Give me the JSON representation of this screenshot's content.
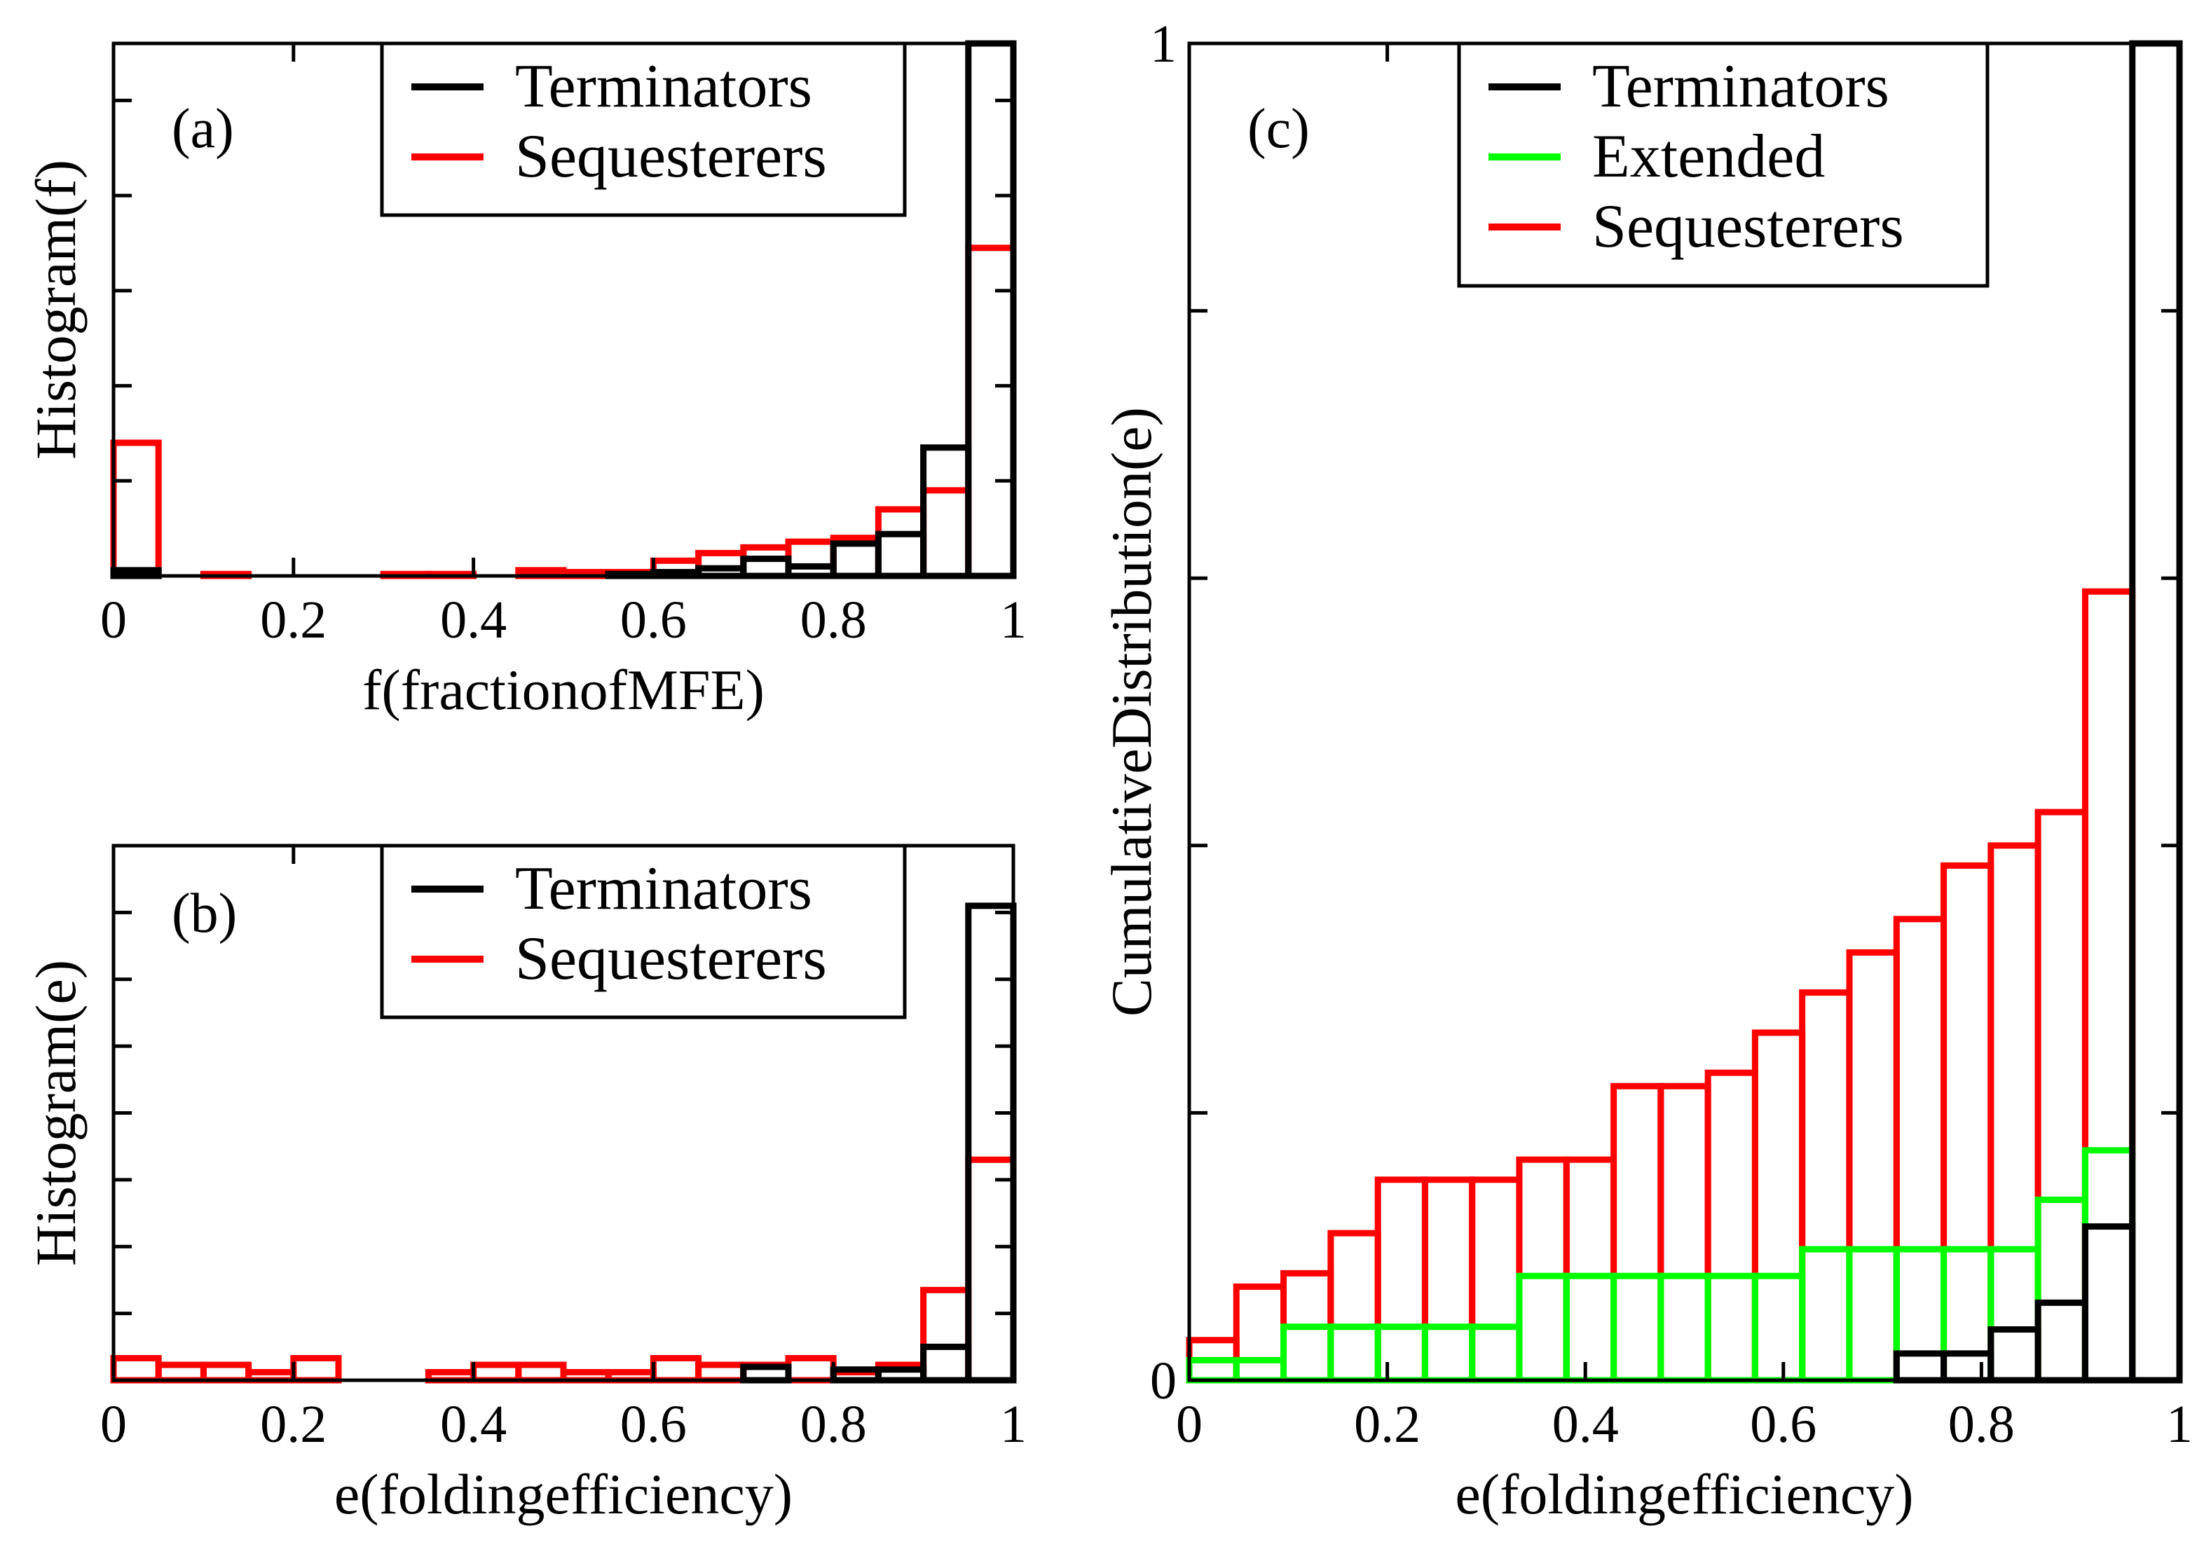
{
  "chart_data": [
    {
      "id": "a",
      "type": "histogram",
      "panel_label": "(a)",
      "xlabel": "f(fractionofMFE)",
      "ylabel": "Histogram(f)",
      "xlim": [
        0,
        1
      ],
      "ylim": [
        0,
        0.56
      ],
      "xticks": [
        0,
        0.2,
        0.4,
        0.6,
        0.8,
        1
      ],
      "xtick_labels": [
        "0",
        "0.2",
        "0.4",
        "0.6",
        "0.8",
        "1"
      ],
      "yticks": [
        0,
        0.1,
        0.2,
        0.3,
        0.4,
        0.5
      ],
      "ytick_labels": [],
      "legend": [
        "Terminators",
        "Sequesterers"
      ],
      "colors": {
        "Terminators": "#000000",
        "Sequesterers": "#ff0000"
      },
      "bin_width": 0.05,
      "bins_start": [
        0,
        0.05,
        0.1,
        0.15,
        0.2,
        0.25,
        0.3,
        0.35,
        0.4,
        0.45,
        0.5,
        0.55,
        0.6,
        0.65,
        0.7,
        0.75,
        0.8,
        0.85,
        0.9,
        0.95
      ],
      "series": [
        {
          "name": "Sequesterers",
          "values": [
            0.14,
            0.0,
            0.002,
            0.0,
            0.0,
            0.0,
            0.002,
            0.002,
            0.0,
            0.006,
            0.004,
            0.004,
            0.016,
            0.024,
            0.03,
            0.036,
            0.04,
            0.07,
            0.09,
            0.345
          ]
        },
        {
          "name": "Terminators",
          "values": [
            0.006,
            0.0,
            0.0,
            0.0,
            0.0,
            0.0,
            0.0,
            0.0,
            0.0,
            0.0,
            0.0,
            0.002,
            0.004,
            0.008,
            0.018,
            0.01,
            0.034,
            0.044,
            0.135,
            0.56
          ]
        }
      ]
    },
    {
      "id": "b",
      "type": "histogram",
      "panel_label": "(b)",
      "xlabel": "e(foldingefficiency)",
      "ylabel": "Histogram(e)",
      "xlim": [
        0,
        1
      ],
      "ylim": [
        0,
        0.8
      ],
      "xticks": [
        0,
        0.2,
        0.4,
        0.6,
        0.8,
        1
      ],
      "xtick_labels": [
        "0",
        "0.2",
        "0.4",
        "0.6",
        "0.8",
        "1"
      ],
      "yticks": [
        0,
        0.1,
        0.2,
        0.3,
        0.4,
        0.5,
        0.6,
        0.7
      ],
      "ytick_labels": [],
      "legend": [
        "Terminators",
        "Sequesterers"
      ],
      "colors": {
        "Terminators": "#000000",
        "Sequesterers": "#ff0000"
      },
      "bin_width": 0.05,
      "bins_start": [
        0,
        0.05,
        0.1,
        0.15,
        0.2,
        0.25,
        0.3,
        0.35,
        0.4,
        0.45,
        0.5,
        0.55,
        0.6,
        0.65,
        0.7,
        0.75,
        0.8,
        0.85,
        0.9,
        0.95
      ],
      "series": [
        {
          "name": "Sequesterers",
          "values": [
            0.033,
            0.023,
            0.023,
            0.012,
            0.033,
            0.0,
            0.0,
            0.012,
            0.023,
            0.023,
            0.012,
            0.012,
            0.033,
            0.023,
            0.023,
            0.033,
            0.012,
            0.023,
            0.135,
            0.33
          ]
        },
        {
          "name": "Terminators",
          "values": [
            0.0,
            0.0,
            0.0,
            0.0,
            0.0,
            0.0,
            0.0,
            0.0,
            0.0,
            0.0,
            0.0,
            0.0,
            0.0,
            0.0,
            0.02,
            0.0,
            0.016,
            0.016,
            0.05,
            0.71
          ]
        }
      ]
    },
    {
      "id": "c",
      "type": "cumulative-step",
      "panel_label": "(c)",
      "xlabel": "e(foldingefficiency)",
      "ylabel": "CumulativeDistribution(e)",
      "xlim": [
        0,
        1
      ],
      "ylim": [
        0,
        1
      ],
      "xticks": [
        0,
        0.2,
        0.4,
        0.6,
        0.8,
        1
      ],
      "xtick_labels": [
        "0",
        "0.2",
        "0.4",
        "0.6",
        "0.8",
        "1"
      ],
      "yticks": [
        0,
        0.2,
        0.4,
        0.6,
        0.8,
        1
      ],
      "ytick_labels": [
        "0",
        "",
        "",
        "",
        "",
        "1"
      ],
      "legend": [
        "Terminators",
        "Extended",
        "Sequesterers"
      ],
      "colors": {
        "Terminators": "#000000",
        "Extended": "#00ff00",
        "Sequesterers": "#ff0000"
      },
      "bin_width": 0.0476,
      "bins_start": [
        0,
        0.0476,
        0.0952,
        0.1429,
        0.1905,
        0.2381,
        0.2857,
        0.3333,
        0.381,
        0.4286,
        0.4762,
        0.5238,
        0.5714,
        0.619,
        0.6667,
        0.7143,
        0.7619,
        0.8095,
        0.8571,
        0.9048,
        0.9524
      ],
      "series": [
        {
          "name": "Sequesterers",
          "values": [
            0.03,
            0.07,
            0.08,
            0.11,
            0.15,
            0.15,
            0.15,
            0.165,
            0.165,
            0.22,
            0.22,
            0.23,
            0.26,
            0.29,
            0.32,
            0.345,
            0.385,
            0.4,
            0.425,
            0.59,
            0.0
          ]
        },
        {
          "name": "Extended",
          "values": [
            0.015,
            0.015,
            0.04,
            0.04,
            0.04,
            0.04,
            0.04,
            0.078,
            0.078,
            0.078,
            0.078,
            0.078,
            0.078,
            0.098,
            0.098,
            0.098,
            0.098,
            0.098,
            0.135,
            0.172,
            0.0
          ]
        },
        {
          "name": "Terminators",
          "values": [
            0.0,
            0.0,
            0.0,
            0.0,
            0.0,
            0.0,
            0.0,
            0.0,
            0.0,
            0.0,
            0.0,
            0.0,
            0.0,
            0.0,
            0.0,
            0.02,
            0.02,
            0.038,
            0.058,
            0.115,
            1.0
          ]
        }
      ]
    }
  ]
}
